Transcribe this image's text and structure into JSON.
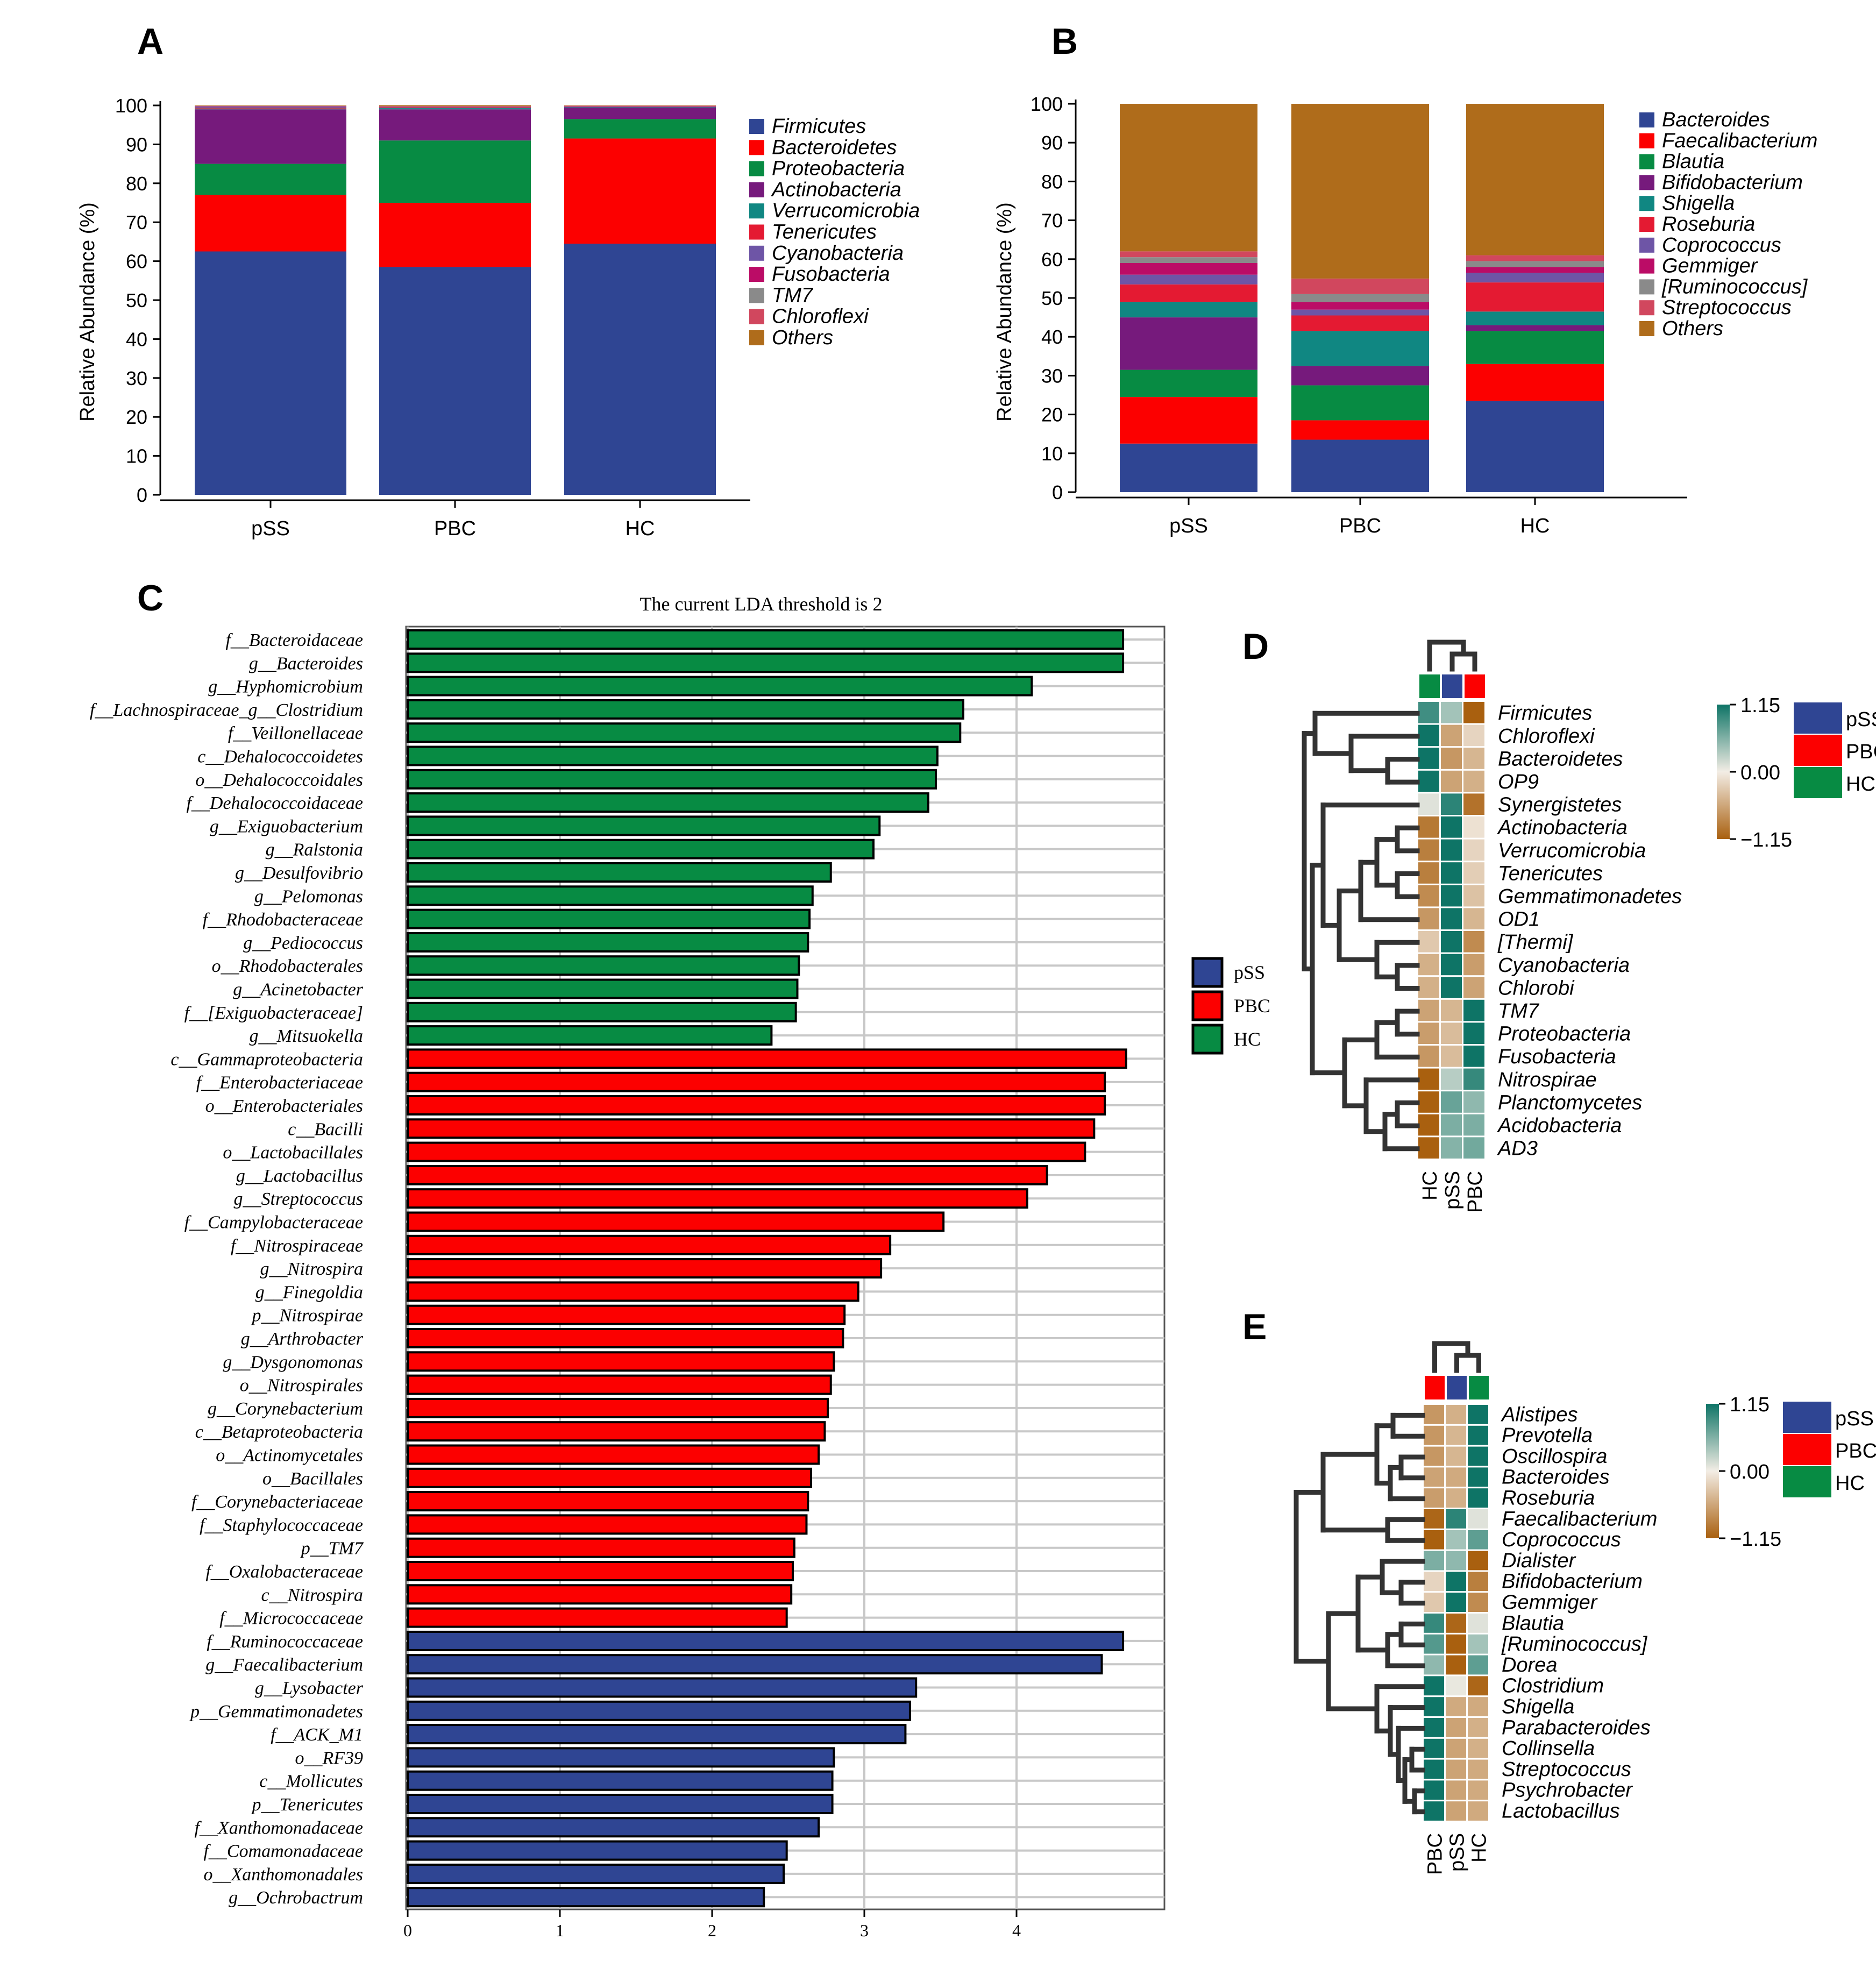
{
  "colors": {
    "blue": "#2F4593",
    "red": "#FC0000",
    "green": "#078B43",
    "purple": "#761A7C",
    "teal": "#108782",
    "crimson": "#E41A32",
    "lavender": "#6E55A6",
    "magenta": "#BB0C66",
    "gray": "#8A8A8A",
    "rose": "#D1475E",
    "brown": "#AF6C1B",
    "hm_high": "#0E7466",
    "hm_mid": "#F3EDE5",
    "hm_low": "#A9600F"
  },
  "chart_data": [
    {
      "id": "A",
      "type": "bar",
      "stacked": true,
      "panel_label": "A",
      "ylabel": "Relative Abundance (%)",
      "ylim": [
        0,
        100
      ],
      "yticks": [
        "0",
        "10",
        "20",
        "30",
        "40",
        "50",
        "60",
        "70",
        "80",
        "90",
        "100"
      ],
      "categories": [
        "pSS",
        "PBC",
        "HC"
      ],
      "series": [
        {
          "name": "Firmicutes",
          "color_key": "blue",
          "values": [
            62.5,
            58.5,
            64.5
          ]
        },
        {
          "name": "Bacteroidetes",
          "color_key": "red",
          "values": [
            14.5,
            16.5,
            27
          ]
        },
        {
          "name": "Proteobacteria",
          "color_key": "green",
          "values": [
            8,
            16,
            5
          ]
        },
        {
          "name": "Actinobacteria",
          "color_key": "purple",
          "values": [
            14,
            8,
            3
          ]
        },
        {
          "name": "Verrucomicrobia",
          "color_key": "teal",
          "values": [
            0.2,
            0.3,
            0.1
          ]
        },
        {
          "name": "Tenericutes",
          "color_key": "crimson",
          "values": [
            0.2,
            0.2,
            0.1
          ]
        },
        {
          "name": "Cyanobacteria",
          "color_key": "lavender",
          "values": [
            0.3,
            0.1,
            0.1
          ]
        },
        {
          "name": "Fusobacteria",
          "color_key": "magenta",
          "values": [
            0.1,
            0.1,
            0.05
          ]
        },
        {
          "name": "TM7",
          "color_key": "gray",
          "values": [
            0.05,
            0.05,
            0.05
          ]
        },
        {
          "name": "Chloroflexi",
          "color_key": "rose",
          "values": [
            0.05,
            0.05,
            0.05
          ]
        },
        {
          "name": "Others",
          "color_key": "brown",
          "values": [
            0.1,
            0.25,
            0.05
          ]
        }
      ]
    },
    {
      "id": "B",
      "type": "bar",
      "stacked": true,
      "panel_label": "B",
      "ylabel": "Relative Abundance (%)",
      "ylim": [
        0,
        100
      ],
      "yticks": [
        "0",
        "10",
        "20",
        "30",
        "40",
        "50",
        "60",
        "70",
        "80",
        "90",
        "100"
      ],
      "categories": [
        "pSS",
        "PBC",
        "HC"
      ],
      "series": [
        {
          "name": "Bacteroides",
          "color_key": "blue",
          "values": [
            12.5,
            13.5,
            23.5
          ]
        },
        {
          "name": "Faecalibacterium",
          "color_key": "red",
          "values": [
            12,
            5,
            9.5
          ]
        },
        {
          "name": "Blautia",
          "color_key": "green",
          "values": [
            7,
            9,
            8.5
          ]
        },
        {
          "name": "Bifidobacterium",
          "color_key": "purple",
          "values": [
            13.5,
            5,
            1.5
          ]
        },
        {
          "name": "Shigella",
          "color_key": "teal",
          "values": [
            4,
            9,
            3.5
          ]
        },
        {
          "name": "Roseburia",
          "color_key": "crimson",
          "values": [
            4.5,
            4,
            7.5
          ]
        },
        {
          "name": "Coprococcus",
          "color_key": "lavender",
          "values": [
            2.5,
            1.5,
            2.5
          ]
        },
        {
          "name": "Gemmiger",
          "color_key": "magenta",
          "values": [
            3,
            2,
            1.5
          ]
        },
        {
          "name": "[Ruminococcus]",
          "color_key": "gray",
          "values": [
            1.5,
            2,
            1.5
          ]
        },
        {
          "name": "Streptococcus",
          "color_key": "rose",
          "values": [
            1.5,
            4,
            1.5
          ]
        },
        {
          "name": "Others",
          "color_key": "brown",
          "values": [
            38,
            45,
            39
          ]
        }
      ]
    },
    {
      "id": "C",
      "type": "bar",
      "orientation": "horizontal",
      "panel_label": "C",
      "title": "The current LDA threshold is 2",
      "xlim": [
        0,
        5
      ],
      "xticks": [
        "0",
        "1",
        "2",
        "3",
        "4"
      ],
      "legend": [
        {
          "name": "pSS",
          "color_key": "blue"
        },
        {
          "name": "PBC",
          "color_key": "red"
        },
        {
          "name": "HC",
          "color_key": "green"
        }
      ],
      "bars": [
        {
          "label": "f__Bacteroidaceae",
          "value": 4.7,
          "group": "HC"
        },
        {
          "label": "g__Bacteroides",
          "value": 4.7,
          "group": "HC"
        },
        {
          "label": "g__Hyphomicrobium",
          "value": 4.1,
          "group": "HC"
        },
        {
          "label": "f__Lachnospiraceae_g__Clostridium",
          "value": 3.65,
          "group": "HC"
        },
        {
          "label": "f__Veillonellaceae",
          "value": 3.63,
          "group": "HC"
        },
        {
          "label": "c__Dehalococcoidetes",
          "value": 3.48,
          "group": "HC"
        },
        {
          "label": "o__Dehalococcoidales",
          "value": 3.47,
          "group": "HC"
        },
        {
          "label": "f__Dehalococcoidaceae",
          "value": 3.42,
          "group": "HC"
        },
        {
          "label": "g__Exiguobacterium",
          "value": 3.1,
          "group": "HC"
        },
        {
          "label": "g__Ralstonia",
          "value": 3.06,
          "group": "HC"
        },
        {
          "label": "g__Desulfovibrio",
          "value": 2.78,
          "group": "HC"
        },
        {
          "label": "g__Pelomonas",
          "value": 2.66,
          "group": "HC"
        },
        {
          "label": "f__Rhodobacteraceae",
          "value": 2.64,
          "group": "HC"
        },
        {
          "label": "g__Pediococcus",
          "value": 2.63,
          "group": "HC"
        },
        {
          "label": "o__Rhodobacterales",
          "value": 2.57,
          "group": "HC"
        },
        {
          "label": "g__Acinetobacter",
          "value": 2.56,
          "group": "HC"
        },
        {
          "label": "f__[Exiguobacteraceae]",
          "value": 2.55,
          "group": "HC"
        },
        {
          "label": "g__Mitsuokella",
          "value": 2.39,
          "group": "HC"
        },
        {
          "label": "c__Gammaproteobacteria",
          "value": 4.72,
          "group": "PBC"
        },
        {
          "label": "f__Enterobacteriaceae",
          "value": 4.58,
          "group": "PBC"
        },
        {
          "label": "o__Enterobacteriales",
          "value": 4.58,
          "group": "PBC"
        },
        {
          "label": "c__Bacilli",
          "value": 4.51,
          "group": "PBC"
        },
        {
          "label": "o__Lactobacillales",
          "value": 4.45,
          "group": "PBC"
        },
        {
          "label": "g__Lactobacillus",
          "value": 4.2,
          "group": "PBC"
        },
        {
          "label": "g__Streptococcus",
          "value": 4.07,
          "group": "PBC"
        },
        {
          "label": "f__Campylobacteraceae",
          "value": 3.52,
          "group": "PBC"
        },
        {
          "label": "f__Nitrospiraceae",
          "value": 3.17,
          "group": "PBC"
        },
        {
          "label": "g__Nitrospira",
          "value": 3.11,
          "group": "PBC"
        },
        {
          "label": "g__Finegoldia",
          "value": 2.96,
          "group": "PBC"
        },
        {
          "label": "p__Nitrospirae",
          "value": 2.87,
          "group": "PBC"
        },
        {
          "label": "g__Arthrobacter",
          "value": 2.86,
          "group": "PBC"
        },
        {
          "label": "g__Dysgonomonas",
          "value": 2.8,
          "group": "PBC"
        },
        {
          "label": "o__Nitrospirales",
          "value": 2.78,
          "group": "PBC"
        },
        {
          "label": "g__Corynebacterium",
          "value": 2.76,
          "group": "PBC"
        },
        {
          "label": "c__Betaproteobacteria",
          "value": 2.74,
          "group": "PBC"
        },
        {
          "label": "o__Actinomycetales",
          "value": 2.7,
          "group": "PBC"
        },
        {
          "label": "o__Bacillales",
          "value": 2.65,
          "group": "PBC"
        },
        {
          "label": "f__Corynebacteriaceae",
          "value": 2.63,
          "group": "PBC"
        },
        {
          "label": "f__Staphylococcaceae",
          "value": 2.62,
          "group": "PBC"
        },
        {
          "label": "p__TM7",
          "value": 2.54,
          "group": "PBC"
        },
        {
          "label": "f__Oxalobacteraceae",
          "value": 2.53,
          "group": "PBC"
        },
        {
          "label": "c__Nitrospira",
          "value": 2.52,
          "group": "PBC"
        },
        {
          "label": "f__Micrococcaceae",
          "value": 2.49,
          "group": "PBC"
        },
        {
          "label": "f__Ruminococcaceae",
          "value": 4.7,
          "group": "pSS"
        },
        {
          "label": "g__Faecalibacterium",
          "value": 4.56,
          "group": "pSS"
        },
        {
          "label": "g__Lysobacter",
          "value": 3.34,
          "group": "pSS"
        },
        {
          "label": "p__Gemmatimonadetes",
          "value": 3.3,
          "group": "pSS"
        },
        {
          "label": "f__ACK_M1",
          "value": 3.27,
          "group": "pSS"
        },
        {
          "label": "o__RF39",
          "value": 2.8,
          "group": "pSS"
        },
        {
          "label": "c__Mollicutes",
          "value": 2.79,
          "group": "pSS"
        },
        {
          "label": "p__Tenericutes",
          "value": 2.79,
          "group": "pSS"
        },
        {
          "label": "f__Xanthomonadaceae",
          "value": 2.7,
          "group": "pSS"
        },
        {
          "label": "f__Comamonadaceae",
          "value": 2.49,
          "group": "pSS"
        },
        {
          "label": "o__Xanthomonadales",
          "value": 2.47,
          "group": "pSS"
        },
        {
          "label": "g__Ochrobactrum",
          "value": 2.34,
          "group": "pSS"
        }
      ]
    },
    {
      "id": "D",
      "type": "heatmap",
      "panel_label": "D",
      "columns": [
        "HC",
        "pSS",
        "PBC"
      ],
      "column_color_keys": [
        "green",
        "blue",
        "red"
      ],
      "color_scale": {
        "max_label": "1.15",
        "mid_label": "0.00",
        "min_label": "−1.15",
        "min": -1.15,
        "max": 1.15
      },
      "legend": [
        {
          "name": "pSS",
          "color_key": "blue"
        },
        {
          "name": "PBC",
          "color_key": "red"
        },
        {
          "name": "HC",
          "color_key": "green"
        }
      ],
      "rows": [
        {
          "label": "Firmicutes",
          "values": [
            0.9,
            0.4,
            -1.15
          ]
        },
        {
          "label": "Chloroflexi",
          "values": [
            1.15,
            -0.6,
            -0.2
          ]
        },
        {
          "label": "Bacteroidetes",
          "values": [
            1.15,
            -0.7,
            -0.45
          ]
        },
        {
          "label": "OP9",
          "values": [
            1.15,
            -0.6,
            -0.5
          ]
        },
        {
          "label": "Synergistetes",
          "values": [
            0.1,
            1.0,
            -1.0
          ]
        },
        {
          "label": "Actinobacteria",
          "values": [
            -0.95,
            1.15,
            -0.1
          ]
        },
        {
          "label": "Verrucomicrobia",
          "values": [
            -0.9,
            1.15,
            -0.2
          ]
        },
        {
          "label": "Tenericutes",
          "values": [
            -0.9,
            1.15,
            -0.25
          ]
        },
        {
          "label": "Gemmatimonadetes",
          "values": [
            -0.8,
            1.15,
            -0.35
          ]
        },
        {
          "label": "OD1",
          "values": [
            -0.7,
            1.15,
            -0.45
          ]
        },
        {
          "label": "[Thermi]",
          "values": [
            -0.3,
            1.15,
            -0.8
          ]
        },
        {
          "label": "Cyanobacteria",
          "values": [
            -0.5,
            1.15,
            -0.65
          ]
        },
        {
          "label": "Chlorobi",
          "values": [
            -0.5,
            1.15,
            -0.6
          ]
        },
        {
          "label": "TM7",
          "values": [
            -0.6,
            -0.45,
            1.15
          ]
        },
        {
          "label": "Proteobacteria",
          "values": [
            -0.65,
            -0.4,
            1.15
          ]
        },
        {
          "label": "Fusobacteria",
          "values": [
            -0.7,
            -0.4,
            1.15
          ]
        },
        {
          "label": "Nitrospirae",
          "values": [
            -1.15,
            0.3,
            0.95
          ]
        },
        {
          "label": "Planctomycetes",
          "values": [
            -1.15,
            0.7,
            0.5
          ]
        },
        {
          "label": "Acidobacteria",
          "values": [
            -1.15,
            0.6,
            0.6
          ]
        },
        {
          "label": "AD3",
          "values": [
            -1.15,
            0.55,
            0.65
          ]
        }
      ]
    },
    {
      "id": "E",
      "type": "heatmap",
      "panel_label": "E",
      "columns": [
        "PBC",
        "pSS",
        "HC"
      ],
      "column_color_keys": [
        "red",
        "blue",
        "green"
      ],
      "color_scale": {
        "max_label": "1.15",
        "mid_label": "0.00",
        "min_label": "−1.15",
        "min": -1.15,
        "max": 1.15
      },
      "legend": [
        {
          "name": "pSS",
          "color_key": "blue"
        },
        {
          "name": "PBC",
          "color_key": "red"
        },
        {
          "name": "HC",
          "color_key": "green"
        }
      ],
      "rows": [
        {
          "label": "Alistipes",
          "values": [
            -0.7,
            -0.5,
            1.15
          ]
        },
        {
          "label": "Prevotella",
          "values": [
            -0.7,
            -0.45,
            1.15
          ]
        },
        {
          "label": "Oscillospira",
          "values": [
            -0.7,
            -0.45,
            1.15
          ]
        },
        {
          "label": "Bacteroides",
          "values": [
            -0.6,
            -0.55,
            1.15
          ]
        },
        {
          "label": "Roseburia",
          "values": [
            -0.65,
            -0.5,
            1.15
          ]
        },
        {
          "label": "Faecalibacterium",
          "values": [
            -1.1,
            1.0,
            0.1
          ]
        },
        {
          "label": "Coprococcus",
          "values": [
            -1.15,
            0.4,
            0.75
          ]
        },
        {
          "label": "Dialister",
          "values": [
            0.6,
            0.5,
            -1.15
          ]
        },
        {
          "label": "Bifidobacterium",
          "values": [
            -0.2,
            1.15,
            -0.9
          ]
        },
        {
          "label": "Gemmiger",
          "values": [
            -0.3,
            1.15,
            -0.8
          ]
        },
        {
          "label": "Blautia",
          "values": [
            0.95,
            -1.1,
            0.1
          ]
        },
        {
          "label": "[Ruminococcus]",
          "values": [
            0.8,
            -1.15,
            0.4
          ]
        },
        {
          "label": "Dorea",
          "values": [
            0.5,
            -1.15,
            0.75
          ]
        },
        {
          "label": "Clostridium",
          "values": [
            1.15,
            0.05,
            -1.1
          ]
        },
        {
          "label": "Shigella",
          "values": [
            1.15,
            -0.55,
            -0.55
          ]
        },
        {
          "label": "Parabacteroides",
          "values": [
            1.15,
            -0.6,
            -0.5
          ]
        },
        {
          "label": "Collinsella",
          "values": [
            1.15,
            -0.6,
            -0.5
          ]
        },
        {
          "label": "Streptococcus",
          "values": [
            1.15,
            -0.6,
            -0.55
          ]
        },
        {
          "label": "Psychrobacter",
          "values": [
            1.15,
            -0.6,
            -0.55
          ]
        },
        {
          "label": "Lactobacillus",
          "values": [
            1.15,
            -0.6,
            -0.55
          ]
        }
      ]
    }
  ]
}
